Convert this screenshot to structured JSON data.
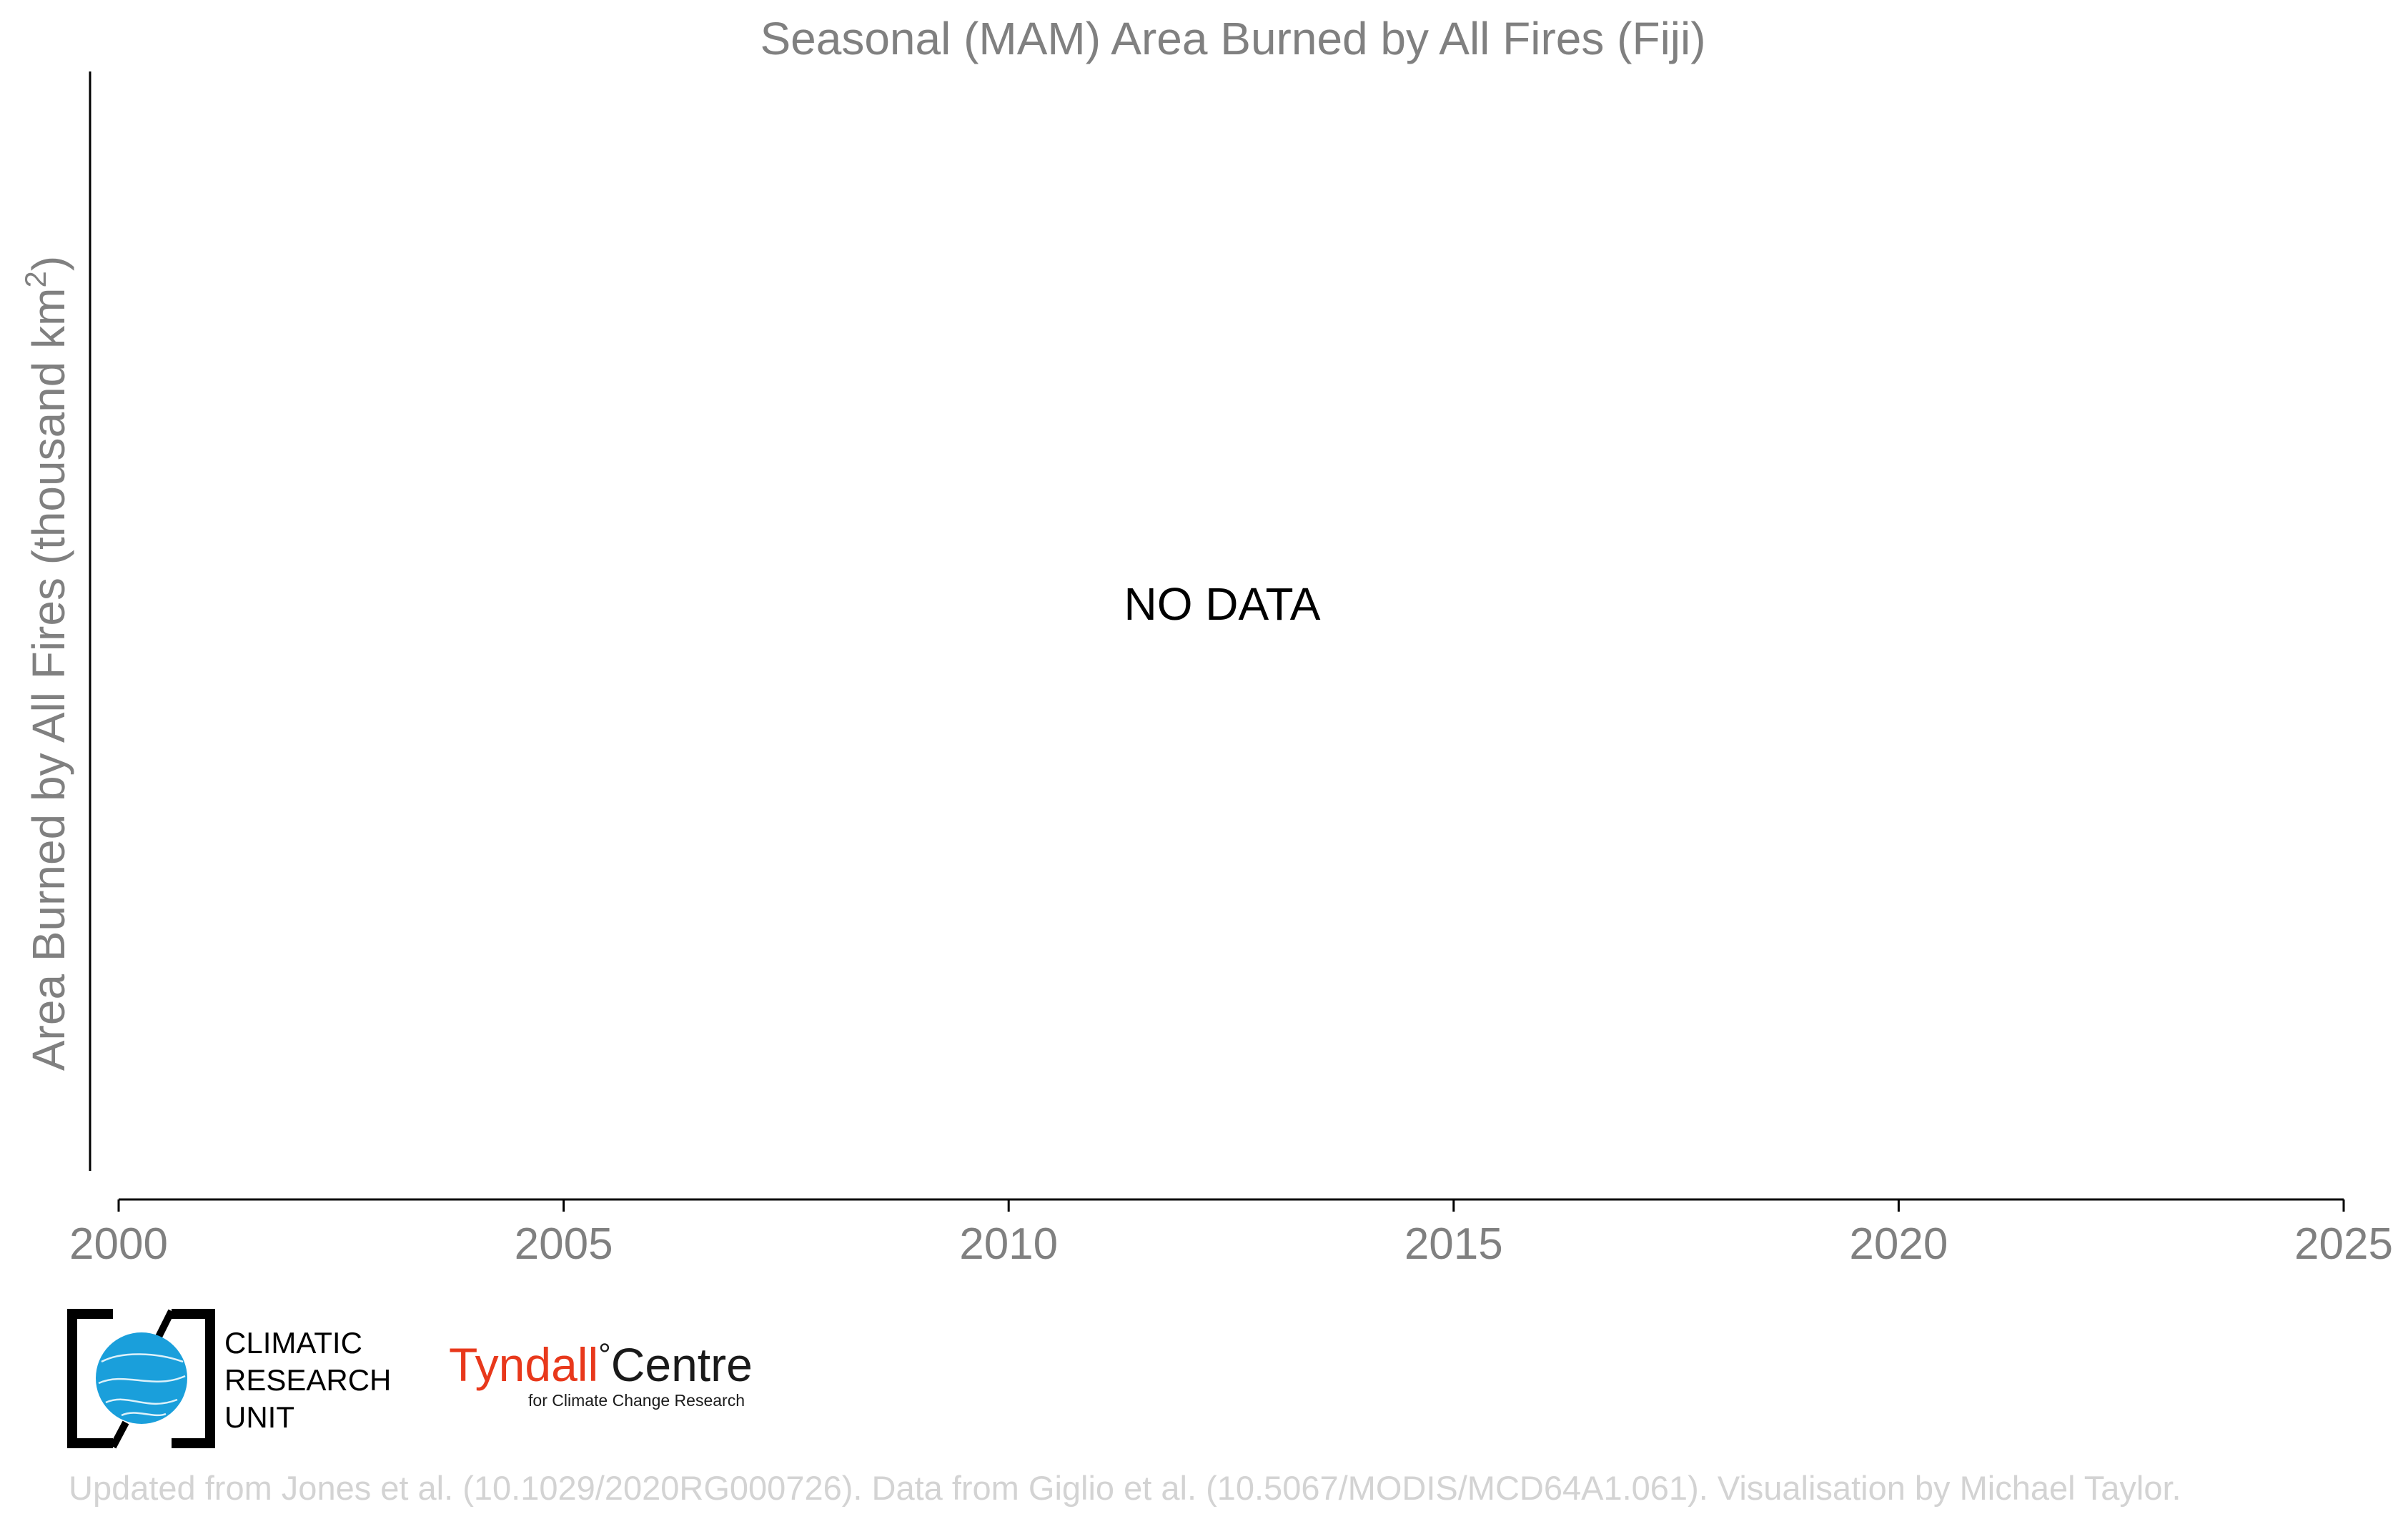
{
  "chart_data": {
    "type": "bar",
    "title": "Seasonal (MAM) Area Burned by All Fires (Fiji)",
    "ylabel_main": "Area Burned by All Fires (thousand km",
    "ylabel_sup": "2",
    "ylabel_close": ")",
    "xlabel": "",
    "x_ticks": [
      "2000",
      "2005",
      "2010",
      "2015",
      "2020",
      "2025"
    ],
    "xlim": [
      2000,
      2025
    ],
    "series": [],
    "no_data_label": "NO DATA",
    "grid": false
  },
  "footer": {
    "cru_logo": {
      "line1": "CLIMATIC",
      "line2": "RESEARCH",
      "line3": "UNIT",
      "globe_color": "#1a9fdb"
    },
    "tyndall_logo": {
      "part1": "Tyndall",
      "degree": "°",
      "part2": "Centre",
      "subtitle": "for Climate Change Research",
      "red": "#e8381b"
    },
    "credit": "Updated from Jones et al. (10.1029/2020RG000726). Data from Giglio et al. (10.5067/MODIS/MCD64A1.061). Visualisation by Michael Taylor."
  }
}
